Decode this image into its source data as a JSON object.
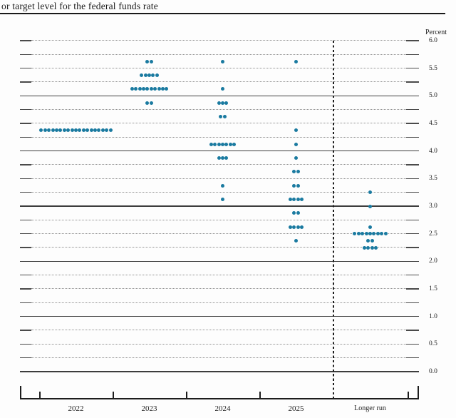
{
  "header": {
    "title": "or target level for the federal funds rate"
  },
  "chart_data": {
    "type": "scatter",
    "subtype": "fomc-dot-plot",
    "title": "or target level for the federal funds rate",
    "xlabel": "",
    "ylabel": "Percent",
    "ylim": [
      0.0,
      6.0
    ],
    "y_minor_step": 0.25,
    "y_label_step": 0.5,
    "grid": true,
    "legend": "none",
    "ytick_labels": [
      "6.0",
      "5.5",
      "5.0",
      "4.5",
      "4.0",
      "3.5",
      "3.0",
      "2.5",
      "2.0",
      "1.5",
      "1.0",
      "0.5",
      "0.0"
    ],
    "solid_gridlines": [
      0.0,
      1.0,
      2.0,
      3.0,
      4.0,
      5.0
    ],
    "categories": [
      "2022",
      "2023",
      "2024",
      "2025",
      "Longer run"
    ],
    "dot_color": "#1a7aa0",
    "dots": [
      {
        "category": "2022",
        "rate": 4.375,
        "count": 19
      },
      {
        "category": "2023",
        "rate": 5.625,
        "count": 2
      },
      {
        "category": "2023",
        "rate": 5.375,
        "count": 5
      },
      {
        "category": "2023",
        "rate": 5.125,
        "count": 10
      },
      {
        "category": "2023",
        "rate": 4.875,
        "count": 2
      },
      {
        "category": "2024",
        "rate": 5.625,
        "count": 1
      },
      {
        "category": "2024",
        "rate": 5.125,
        "count": 1
      },
      {
        "category": "2024",
        "rate": 4.875,
        "count": 3
      },
      {
        "category": "2024",
        "rate": 4.625,
        "count": 2
      },
      {
        "category": "2024",
        "rate": 4.125,
        "count": 7
      },
      {
        "category": "2024",
        "rate": 3.875,
        "count": 3
      },
      {
        "category": "2024",
        "rate": 3.375,
        "count": 1
      },
      {
        "category": "2024",
        "rate": 3.125,
        "count": 1
      },
      {
        "category": "2025",
        "rate": 5.625,
        "count": 1
      },
      {
        "category": "2025",
        "rate": 4.375,
        "count": 1
      },
      {
        "category": "2025",
        "rate": 4.125,
        "count": 1
      },
      {
        "category": "2025",
        "rate": 3.875,
        "count": 1
      },
      {
        "category": "2025",
        "rate": 3.625,
        "count": 2
      },
      {
        "category": "2025",
        "rate": 3.375,
        "count": 2
      },
      {
        "category": "2025",
        "rate": 3.125,
        "count": 4
      },
      {
        "category": "2025",
        "rate": 2.875,
        "count": 2
      },
      {
        "category": "2025",
        "rate": 2.625,
        "count": 4
      },
      {
        "category": "2025",
        "rate": 2.375,
        "count": 1
      },
      {
        "category": "Longer run",
        "rate": 3.25,
        "count": 1
      },
      {
        "category": "Longer run",
        "rate": 3.0,
        "count": 1
      },
      {
        "category": "Longer run",
        "rate": 2.625,
        "count": 1
      },
      {
        "category": "Longer run",
        "rate": 2.5,
        "count": 9
      },
      {
        "category": "Longer run",
        "rate": 2.375,
        "count": 2
      },
      {
        "category": "Longer run",
        "rate": 2.25,
        "count": 4
      }
    ]
  }
}
